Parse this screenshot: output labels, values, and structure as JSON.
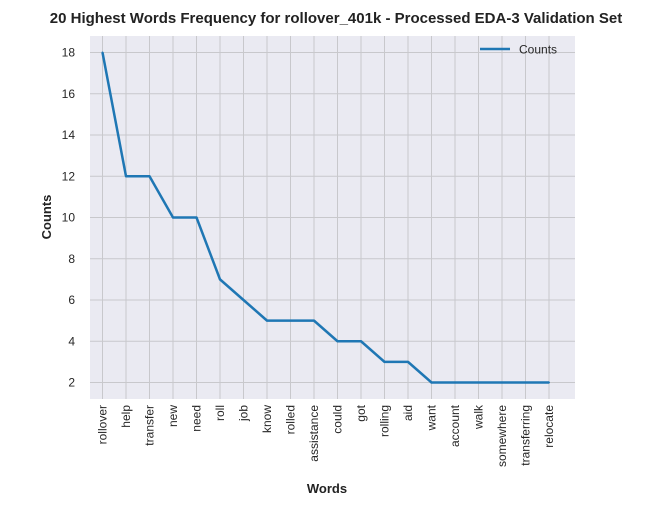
{
  "chart_data": {
    "type": "line",
    "title": "20 Highest Words Frequency for rollover_401k - Processed EDA-3 Validation Set",
    "xlabel": "Words",
    "ylabel": "Counts",
    "categories": [
      "rollover",
      "help",
      "transfer",
      "new",
      "need",
      "roll",
      "job",
      "know",
      "rolled",
      "assistance",
      "could",
      "got",
      "rolling",
      "aid",
      "want",
      "account",
      "walk",
      "somewhere",
      "transferring",
      "relocate"
    ],
    "series": [
      {
        "name": "Counts",
        "values": [
          18,
          12,
          12,
          10,
          10,
          7,
          6,
          5,
          5,
          5,
          4,
          4,
          3,
          3,
          2,
          2,
          2,
          2,
          2,
          2
        ]
      }
    ],
    "ylim": [
      1.2,
      18.8
    ],
    "yticks": [
      2,
      4,
      6,
      8,
      10,
      12,
      14,
      16,
      18
    ],
    "grid": true,
    "legend": "top-right",
    "colors": {
      "line": "#1f77b4",
      "plot_bg": "#eaeaf2",
      "grid": "#c8c8cc"
    }
  }
}
